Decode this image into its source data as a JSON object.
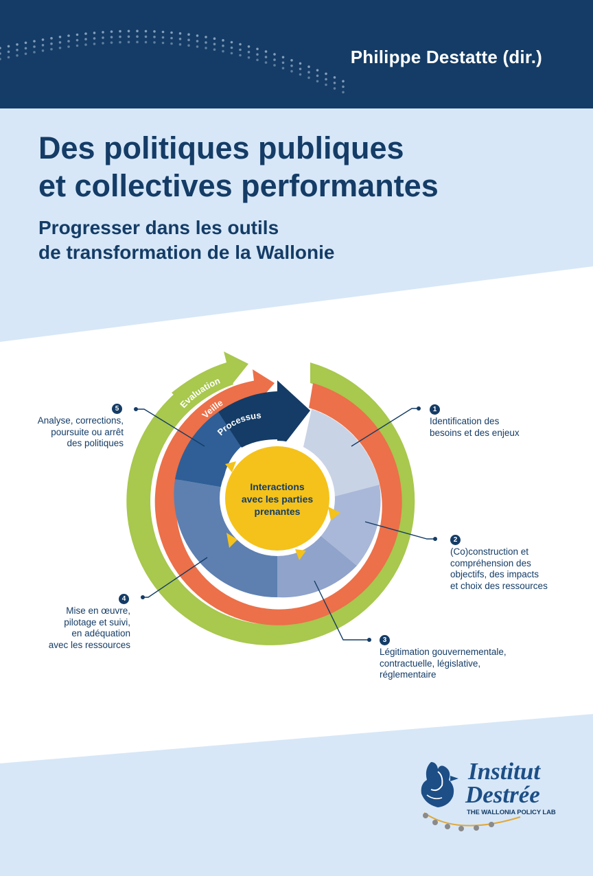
{
  "colors": {
    "navy": "#143c66",
    "light_blue": "#d7e7f7",
    "green": "#a8c84e",
    "orange": "#ec7049",
    "dark_blue": "#245a8f",
    "yellow": "#f4c21a",
    "logo_gold": "#e0a83a"
  },
  "cover": {
    "author": "Philippe Destatte (dir.)",
    "title_lines": [
      "Des politiques publiques",
      "et collectives performantes"
    ],
    "subtitle_lines": [
      "Progresser dans les outils",
      "de transformation de la Wallonie"
    ]
  },
  "diagram": {
    "rings": {
      "outer": "Evaluation",
      "middle": "Veille",
      "inner": "Processus"
    },
    "center": [
      "Interactions",
      "avec les parties",
      "prenantes"
    ],
    "steps": [
      {
        "number": "1",
        "lines": [
          "Identification des",
          "besoins et des enjeux"
        ]
      },
      {
        "number": "2",
        "lines": [
          "(Co)construction et",
          "compréhension des",
          "objectifs, des impacts",
          "et choix des ressources"
        ]
      },
      {
        "number": "3",
        "lines": [
          "Légitimation gouvernementale,",
          "contractuelle, législative,",
          "réglementaire"
        ]
      },
      {
        "number": "4",
        "lines": [
          "Mise en œuvre,",
          "pilotage et suivi,",
          "en adéquation",
          "avec les ressources"
        ]
      },
      {
        "number": "5",
        "lines": [
          "Analyse, corrections,",
          "poursuite ou arrêt",
          "des politiques"
        ]
      }
    ]
  },
  "logo": {
    "line1": "Institut",
    "line2": "Destrée",
    "tagline": "THE WALLONIA POLICY LAB",
    "icon": "rooster-icon"
  }
}
